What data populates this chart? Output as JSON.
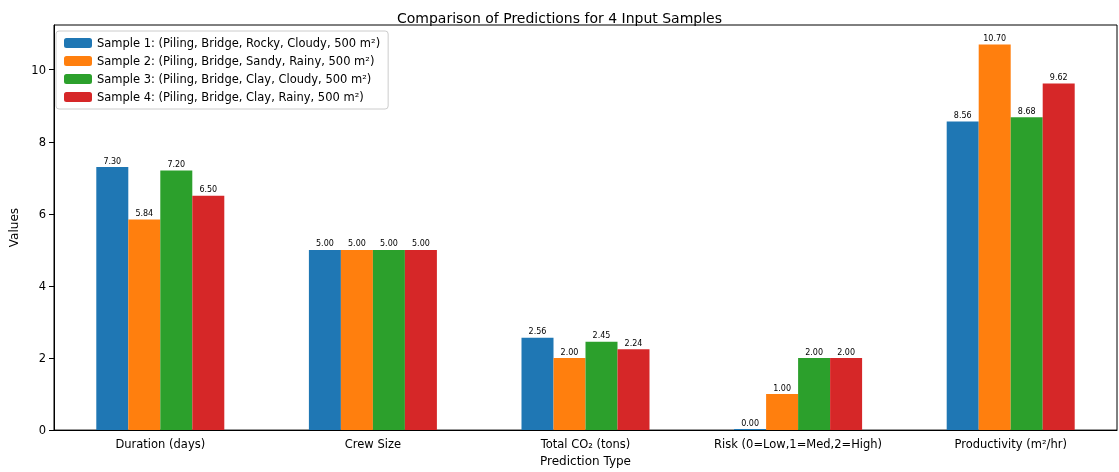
{
  "chart_data": {
    "type": "bar",
    "title": "Comparison of Predictions for 4 Input Samples",
    "xlabel": "Prediction Type",
    "ylabel": "Values",
    "categories": [
      "Duration (days)",
      "Crew Size",
      "Total CO₂ (tons)",
      "Risk (0=Low,1=Med,2=High)",
      "Productivity (m²/hr)"
    ],
    "series": [
      {
        "name": "Sample 1: (Piling, Bridge, Rocky, Cloudy, 500 m²)",
        "color": "#1f77b4",
        "values": [
          7.3,
          5,
          2.56,
          0,
          8.56
        ],
        "value_labels": [
          "7.30",
          "5.00",
          "2.56",
          "0.00",
          "8.56"
        ]
      },
      {
        "name": "Sample 2: (Piling, Bridge, Sandy, Rainy, 500 m²)",
        "color": "#ff7f0e",
        "values": [
          5.84,
          5,
          2,
          1,
          10.7
        ],
        "value_labels": [
          "5.84",
          "5.00",
          "2.00",
          "1.00",
          "10.70"
        ]
      },
      {
        "name": "Sample 3: (Piling, Bridge, Clay, Cloudy, 500 m²)",
        "color": "#2ca02c",
        "values": [
          7.2,
          5,
          2.45,
          2,
          8.68
        ],
        "value_labels": [
          "7.20",
          "5.00",
          "2.45",
          "2.00",
          "8.68"
        ]
      },
      {
        "name": "Sample 4: (Piling, Bridge, Clay, Rainy, 500 m²)",
        "color": "#d62728",
        "values": [
          6.5,
          5,
          2.24,
          2,
          9.62
        ],
        "value_labels": [
          "6.50",
          "5.00",
          "2.24",
          "2.00",
          "9.62"
        ]
      }
    ],
    "ylim": [
      0,
      11.24
    ],
    "yticks": [
      0,
      2,
      4,
      6,
      8,
      10
    ],
    "grid": false,
    "legend": "top left"
  }
}
